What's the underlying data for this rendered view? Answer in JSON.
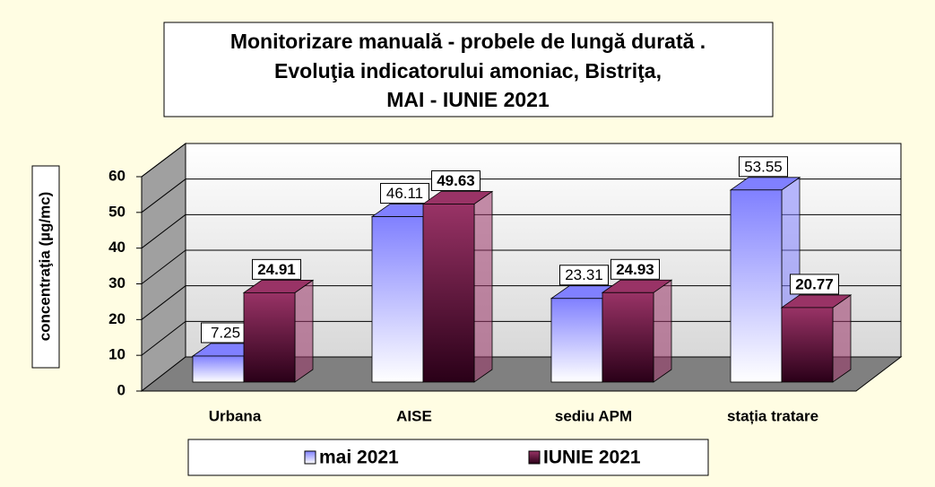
{
  "chart_data": {
    "type": "bar3d",
    "title": [
      "Monitorizare manuală - probele de lungă durată .",
      "Evoluţia indicatorului amoniac, Bistriţa,",
      "MAI - IUNIE 2021"
    ],
    "y_label": "concentraţia (µg/mc)",
    "categories": [
      "Urbana",
      "AISE",
      "sediu APM",
      "stația tratare"
    ],
    "series": [
      {
        "name": "mai 2021",
        "color": "#8080ff",
        "values": [
          7.25,
          46.11,
          23.31,
          53.55
        ]
      },
      {
        "name": "IUNIE 2021",
        "color": "#993366",
        "values": [
          24.91,
          49.63,
          24.93,
          20.77
        ]
      }
    ],
    "ylim": [
      0,
      60
    ],
    "yticks": [
      0,
      10,
      20,
      30,
      40,
      50,
      60
    ],
    "grid": true,
    "legend": "bottom"
  }
}
